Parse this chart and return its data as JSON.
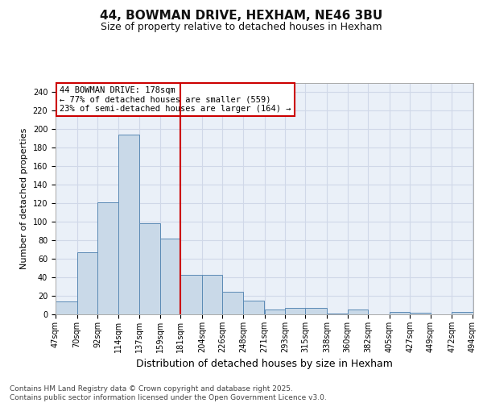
{
  "title_line1": "44, BOWMAN DRIVE, HEXHAM, NE46 3BU",
  "title_line2": "Size of property relative to detached houses in Hexham",
  "xlabel": "Distribution of detached houses by size in Hexham",
  "ylabel": "Number of detached properties",
  "footer_line1": "Contains HM Land Registry data © Crown copyright and database right 2025.",
  "footer_line2": "Contains public sector information licensed under the Open Government Licence v3.0.",
  "annotation_line1": "44 BOWMAN DRIVE: 178sqm",
  "annotation_line2": "← 77% of detached houses are smaller (559)",
  "annotation_line3": "23% of semi-detached houses are larger (164) →",
  "bar_left_edges": [
    47,
    70,
    92,
    114,
    137,
    159,
    181,
    204,
    226,
    248,
    271,
    293,
    315,
    338,
    360,
    382,
    405,
    427,
    449,
    472
  ],
  "bar_heights": [
    14,
    67,
    121,
    194,
    98,
    82,
    43,
    43,
    24,
    15,
    5,
    7,
    7,
    1,
    5,
    0,
    3,
    2,
    0,
    3
  ],
  "bin_labels": [
    "47sqm",
    "70sqm",
    "92sqm",
    "114sqm",
    "137sqm",
    "159sqm",
    "181sqm",
    "204sqm",
    "226sqm",
    "248sqm",
    "271sqm",
    "293sqm",
    "315sqm",
    "338sqm",
    "360sqm",
    "382sqm",
    "405sqm",
    "427sqm",
    "449sqm",
    "472sqm",
    "494sqm"
  ],
  "bar_color": "#c9d9e8",
  "bar_edge_color": "#5b8ab5",
  "vline_color": "#cc0000",
  "vline_x": 181,
  "grid_color": "#d0d8e8",
  "annotation_box_color": "#cc0000",
  "ylim": [
    0,
    250
  ],
  "yticks": [
    0,
    20,
    40,
    60,
    80,
    100,
    120,
    140,
    160,
    180,
    200,
    220,
    240
  ],
  "bg_color": "#eaf0f8",
  "fig_bg_color": "#ffffff",
  "title_fontsize": 11,
  "subtitle_fontsize": 9,
  "ylabel_fontsize": 8,
  "xlabel_fontsize": 9,
  "tick_fontsize": 7,
  "footer_fontsize": 6.5,
  "ann_fontsize": 7.5
}
